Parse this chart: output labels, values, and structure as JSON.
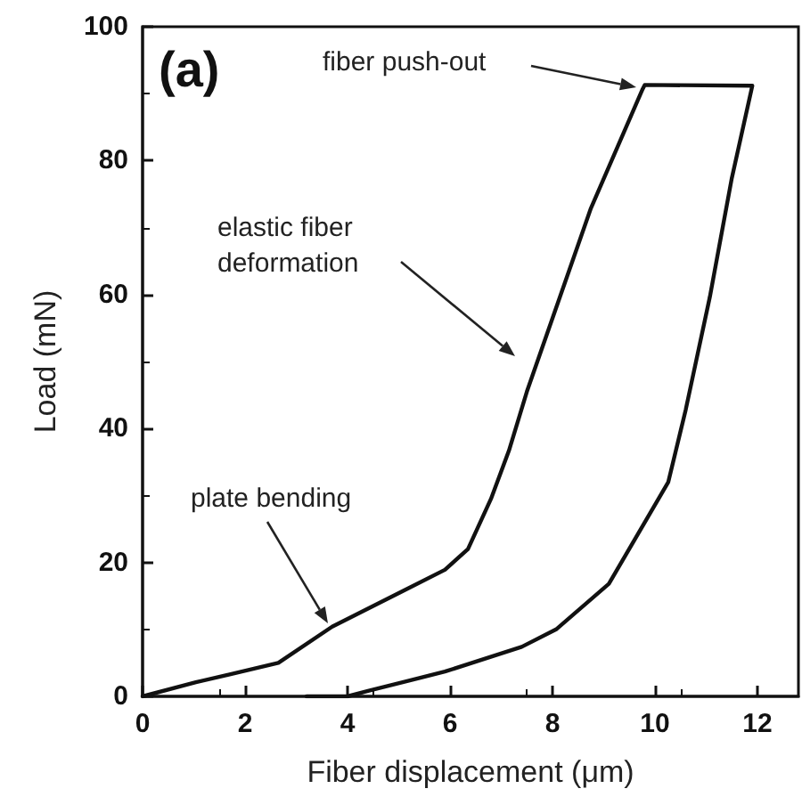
{
  "chart_data": {
    "type": "line",
    "title": "(a)",
    "xlabel": "Fiber displacement (μm)",
    "ylabel": "Load (mN)",
    "x": [
      0,
      1.04,
      2.65,
      3.7,
      5.07,
      5.9,
      6.35,
      6.8,
      7.15,
      7.5,
      8.75,
      9.76,
      9.8,
      11.9,
      11.5,
      11.07,
      10.6,
      10.26,
      9.1,
      8.07,
      7.4,
      5.9,
      4.4,
      4.0,
      3.2
    ],
    "series": [
      {
        "color": "#111111",
        "values": [
          0,
          2.1,
          5,
          10.4,
          15.7,
          18.9,
          22,
          29.5,
          36.7,
          45.5,
          72.9,
          90.7,
          91.3,
          91.2,
          77.4,
          59.6,
          42.8,
          32,
          16.8,
          10,
          7.4,
          3.7,
          0.8,
          0,
          0
        ]
      }
    ],
    "xlim": [
      0,
      12.8
    ],
    "xticks": [
      0,
      2,
      4,
      6,
      8,
      10,
      12
    ],
    "ylim": [
      0,
      100
    ],
    "yticks": [
      0,
      20,
      40,
      60,
      80,
      100
    ],
    "grid": false,
    "marker": "none",
    "line_style": "solid",
    "annotations": [
      "fiber push-out",
      "elastic fiber\ndeformation",
      "plate bending"
    ]
  }
}
